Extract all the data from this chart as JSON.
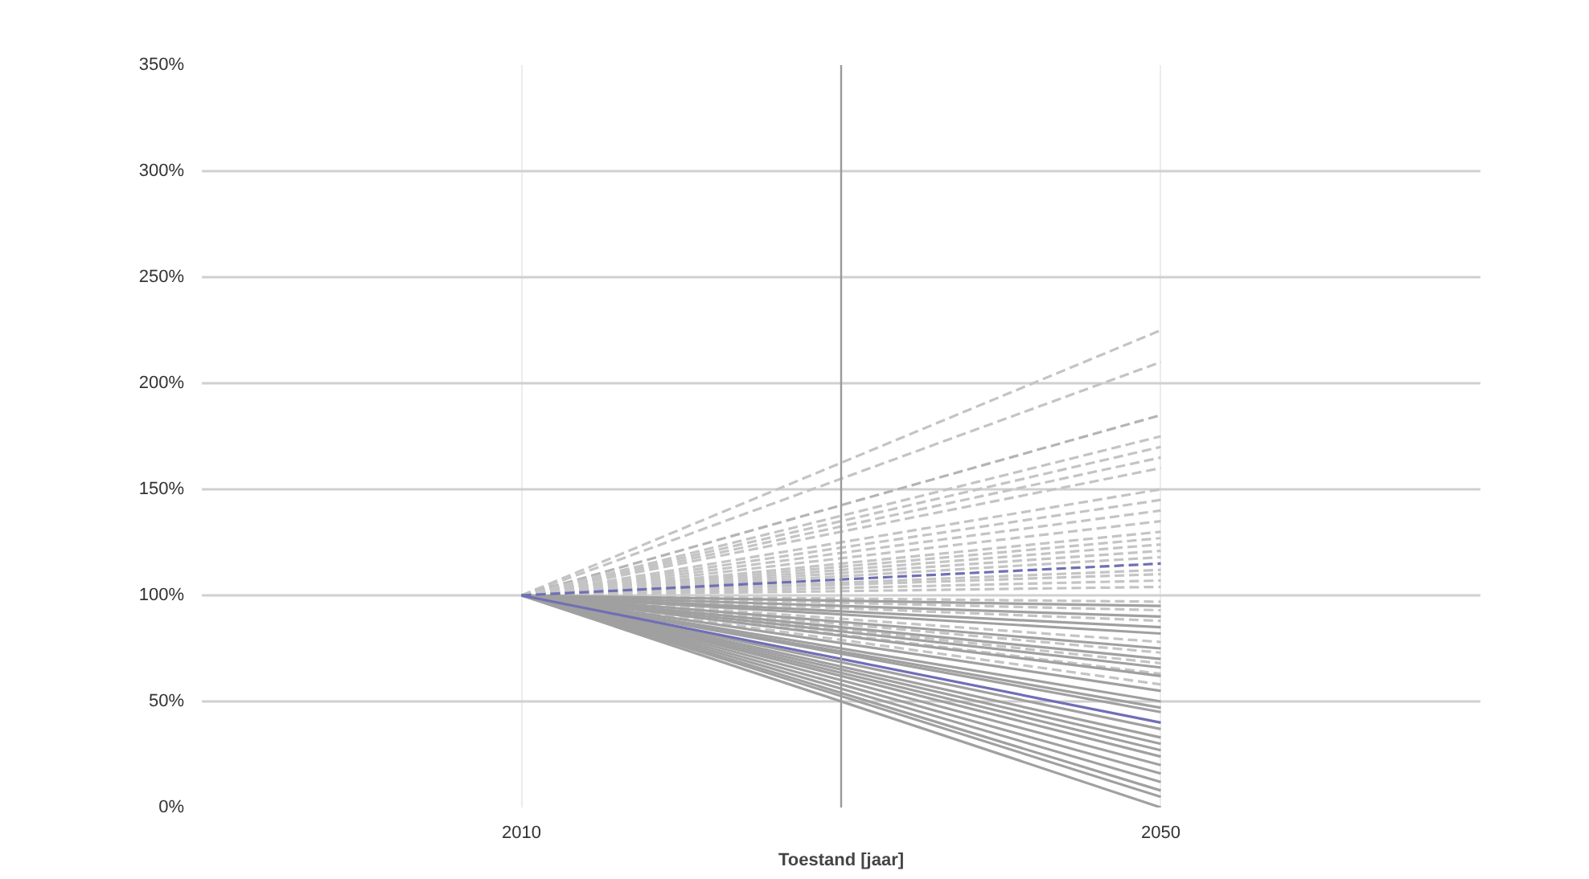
{
  "chart_data": {
    "type": "line",
    "xlabel": "Toestand [jaar]",
    "x": [
      2010,
      2050
    ],
    "xlim": [
      1990,
      2070
    ],
    "xticks": [
      2010,
      2050
    ],
    "ref_lines": [
      {
        "axis": "x",
        "value": 2030,
        "color": "#9a9a9a"
      }
    ],
    "ylim": [
      0,
      350
    ],
    "yticks": [
      {
        "value": 0,
        "label": "0%"
      },
      {
        "value": 50,
        "label": "50%"
      },
      {
        "value": 100,
        "label": "100%"
      },
      {
        "value": 150,
        "label": "150%"
      },
      {
        "value": 200,
        "label": "200%"
      },
      {
        "value": 250,
        "label": "250%"
      },
      {
        "value": 300,
        "label": "300%"
      },
      {
        "value": 350,
        "label": "350%"
      }
    ],
    "grid": true,
    "marker": "none",
    "series": [
      {
        "color": "#c4c4c4",
        "line_style": "dashed",
        "values": [
          100,
          225
        ]
      },
      {
        "color": "#c4c4c4",
        "line_style": "dashed",
        "values": [
          100,
          210
        ]
      },
      {
        "color": "#b4b4b4",
        "line_style": "dashed",
        "values": [
          100,
          185
        ]
      },
      {
        "color": "#c4c4c4",
        "line_style": "dashed",
        "values": [
          100,
          175
        ]
      },
      {
        "color": "#c4c4c4",
        "line_style": "dashed",
        "values": [
          100,
          170
        ]
      },
      {
        "color": "#c4c4c4",
        "line_style": "dashed",
        "values": [
          100,
          165
        ]
      },
      {
        "color": "#c4c4c4",
        "line_style": "dashed",
        "values": [
          100,
          160
        ]
      },
      {
        "color": "#c4c4c4",
        "line_style": "dashed",
        "values": [
          100,
          150
        ]
      },
      {
        "color": "#c4c4c4",
        "line_style": "dashed",
        "values": [
          100,
          145
        ]
      },
      {
        "color": "#c4c4c4",
        "line_style": "dashed",
        "values": [
          100,
          140
        ]
      },
      {
        "color": "#c4c4c4",
        "line_style": "dashed",
        "values": [
          100,
          135
        ]
      },
      {
        "color": "#c4c4c4",
        "line_style": "dashed",
        "values": [
          100,
          130
        ]
      },
      {
        "color": "#c4c4c4",
        "line_style": "dashed",
        "values": [
          100,
          127
        ]
      },
      {
        "color": "#c4c4c4",
        "line_style": "dashed",
        "values": [
          100,
          124
        ]
      },
      {
        "color": "#c4c4c4",
        "line_style": "dashed",
        "values": [
          100,
          121
        ]
      },
      {
        "color": "#c4c4c4",
        "line_style": "dashed",
        "values": [
          100,
          118
        ]
      },
      {
        "color": "#c4c4c4",
        "line_style": "dashed",
        "values": [
          100,
          112
        ]
      },
      {
        "color": "#c4c4c4",
        "line_style": "dashed",
        "values": [
          100,
          110
        ]
      },
      {
        "color": "#c4c4c4",
        "line_style": "dashed",
        "values": [
          100,
          107
        ]
      },
      {
        "color": "#c4c4c4",
        "line_style": "dashed",
        "values": [
          100,
          104
        ]
      },
      {
        "color": "#c4c4c4",
        "line_style": "dashed",
        "values": [
          100,
          97
        ]
      },
      {
        "color": "#c4c4c4",
        "line_style": "dashed",
        "values": [
          100,
          93
        ]
      },
      {
        "color": "#c4c4c4",
        "line_style": "dashed",
        "values": [
          100,
          88
        ]
      },
      {
        "color": "#c4c4c4",
        "line_style": "dashed",
        "values": [
          100,
          78
        ]
      },
      {
        "color": "#c4c4c4",
        "line_style": "dashed",
        "values": [
          100,
          73
        ]
      },
      {
        "color": "#c4c4c4",
        "line_style": "dashed",
        "values": [
          100,
          68
        ]
      },
      {
        "color": "#c4c4c4",
        "line_style": "dashed",
        "values": [
          100,
          63
        ]
      },
      {
        "color": "#c4c4c4",
        "line_style": "dashed",
        "values": [
          100,
          58
        ]
      },
      {
        "color": "#a0a0a0",
        "line_style": "solid",
        "values": [
          100,
          95
        ]
      },
      {
        "color": "#a0a0a0",
        "line_style": "solid",
        "values": [
          100,
          90
        ]
      },
      {
        "color": "#a0a0a0",
        "line_style": "solid",
        "values": [
          100,
          85
        ]
      },
      {
        "color": "#a0a0a0",
        "line_style": "solid",
        "values": [
          100,
          82
        ]
      },
      {
        "color": "#a0a0a0",
        "line_style": "solid",
        "values": [
          100,
          75
        ]
      },
      {
        "color": "#a0a0a0",
        "line_style": "solid",
        "values": [
          100,
          70
        ]
      },
      {
        "color": "#a0a0a0",
        "line_style": "solid",
        "values": [
          100,
          66
        ]
      },
      {
        "color": "#a0a0a0",
        "line_style": "solid",
        "values": [
          100,
          62
        ]
      },
      {
        "color": "#a0a0a0",
        "line_style": "solid",
        "values": [
          100,
          55
        ]
      },
      {
        "color": "#a0a0a0",
        "line_style": "solid",
        "values": [
          100,
          50
        ]
      },
      {
        "color": "#a0a0a0",
        "line_style": "solid",
        "values": [
          100,
          47
        ]
      },
      {
        "color": "#a0a0a0",
        "line_style": "solid",
        "values": [
          100,
          45
        ]
      },
      {
        "color": "#a0a0a0",
        "line_style": "solid",
        "values": [
          100,
          37
        ]
      },
      {
        "color": "#a0a0a0",
        "line_style": "solid",
        "values": [
          100,
          33
        ]
      },
      {
        "color": "#a0a0a0",
        "line_style": "solid",
        "values": [
          100,
          30
        ]
      },
      {
        "color": "#a0a0a0",
        "line_style": "solid",
        "values": [
          100,
          27
        ]
      },
      {
        "color": "#a0a0a0",
        "line_style": "solid",
        "values": [
          100,
          24
        ]
      },
      {
        "color": "#a0a0a0",
        "line_style": "solid",
        "values": [
          100,
          20
        ]
      },
      {
        "color": "#a0a0a0",
        "line_style": "solid",
        "values": [
          100,
          16
        ]
      },
      {
        "color": "#a0a0a0",
        "line_style": "solid",
        "values": [
          100,
          12
        ]
      },
      {
        "color": "#a0a0a0",
        "line_style": "solid",
        "values": [
          100,
          8
        ]
      },
      {
        "color": "#a0a0a0",
        "line_style": "solid",
        "values": [
          100,
          5
        ]
      },
      {
        "color": "#a0a0a0",
        "line_style": "solid",
        "values": [
          100,
          0
        ]
      },
      {
        "color": "#6f6fb5",
        "line_style": "dashed",
        "values": [
          100,
          115
        ]
      },
      {
        "color": "#6f6fb5",
        "line_style": "solid",
        "values": [
          100,
          40
        ]
      }
    ]
  }
}
